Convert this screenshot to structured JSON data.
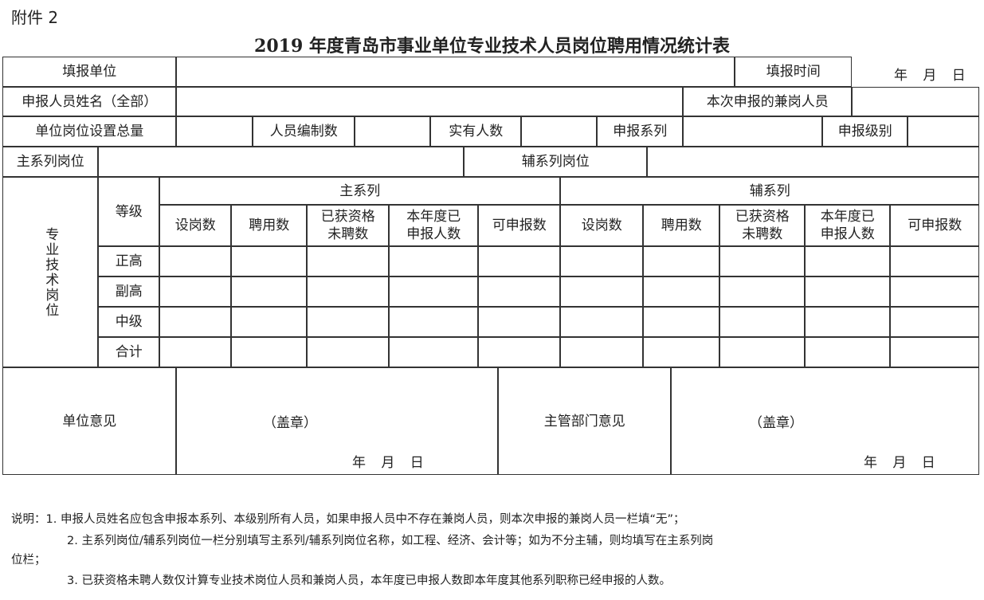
{
  "attachment": "附件 2",
  "title": "2019 年度青岛市事业单位专业技术人员岗位聘用情况统计表",
  "form": {
    "fill_unit": "填报单位",
    "fill_time": "填报时间",
    "date_placeholder": "年 月 日",
    "applicant_names": "申报人员姓名（全部）",
    "part_time_staff": "本次申报的兼岗人员",
    "total_posts": "单位岗位设置总量",
    "staff_quota": "人员编制数",
    "actual_staff": "实有人数",
    "apply_series": "申报系列",
    "apply_level": "申报级别",
    "main_series_post": "主系列岗位",
    "aux_series_post": "辅系列岗位"
  },
  "grid": {
    "side_label": "专业技术岗位",
    "level_header": "等级",
    "main_series": "主系列",
    "aux_series": "辅系列",
    "columns": [
      "设岗数",
      "聘用数",
      "已获资格未聘数",
      "本年度已申报人数",
      "可申报数"
    ],
    "column_lines": [
      [
        "设岗数"
      ],
      [
        "聘用数"
      ],
      [
        "已获资格",
        "未聘数"
      ],
      [
        "本年度已",
        "申报人数"
      ],
      [
        "可申报数"
      ]
    ],
    "rows": [
      "正高",
      "副高",
      "中级",
      "合计"
    ]
  },
  "opinions": {
    "unit_opinion": "单位意见",
    "seal": "（盖章）",
    "date": "年 月 日",
    "dept_opinion": "主管部门意见"
  },
  "notes": [
    "说明：1. 申报人员姓名应包含申报本系列、本级别所有人员，如果申报人员中不存在兼岗人员，则本次申报的兼岗人员一栏填“无”；",
    "2. 主系列岗位/辅系列岗位一栏分别填写主系列/辅系列岗位名称，如工程、经济、会计等；如为不分主辅，则均填写在主系列岗",
    "位栏；",
    "3. 已获资格未聘人数仅计算专业技术岗位人员和兼岗人员，本年度已申报人数即本年度其他系列职称已经申报的人数。"
  ]
}
